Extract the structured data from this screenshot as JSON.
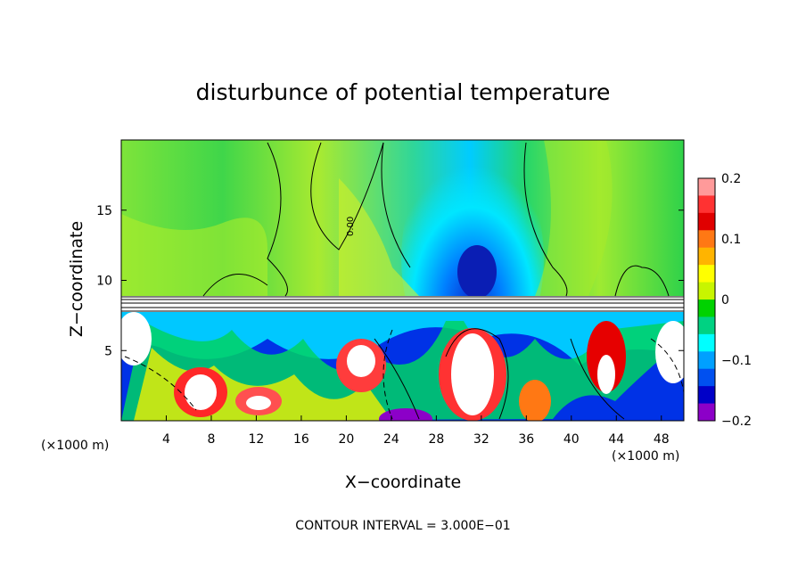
{
  "chart_data": {
    "type": "heatmap",
    "title": "disturbunce of potential temperature",
    "xlabel": "X−coordinate",
    "ylabel": "Z−coordinate",
    "x_unit": "(×1000 m)",
    "x_unit_right": "(×1000 m)",
    "xlim": [
      0,
      50
    ],
    "ylim": [
      0,
      20
    ],
    "x_ticks": [
      "4",
      "8",
      "12",
      "16",
      "20",
      "24",
      "28",
      "32",
      "36",
      "40",
      "44",
      "48"
    ],
    "y_ticks": [
      "5",
      "10",
      "15"
    ],
    "colorbar": {
      "range": [
        -0.2,
        0.2
      ],
      "tick_labels": [
        "0.2",
        "0.1",
        "0",
        "−0.1",
        "−0.2"
      ],
      "colors": [
        "#ff9a9a",
        "#ff3232",
        "#e00000",
        "#ff7814",
        "#ffb400",
        "#ffff00",
        "#c8f500",
        "#00d200",
        "#00d282",
        "#00ffff",
        "#00a0ff",
        "#0050f0",
        "#0000c8",
        "#8c00c8"
      ]
    },
    "contour_label": "0.00",
    "footer": "CONTOUR INTERVAL = 3.000E−01"
  }
}
